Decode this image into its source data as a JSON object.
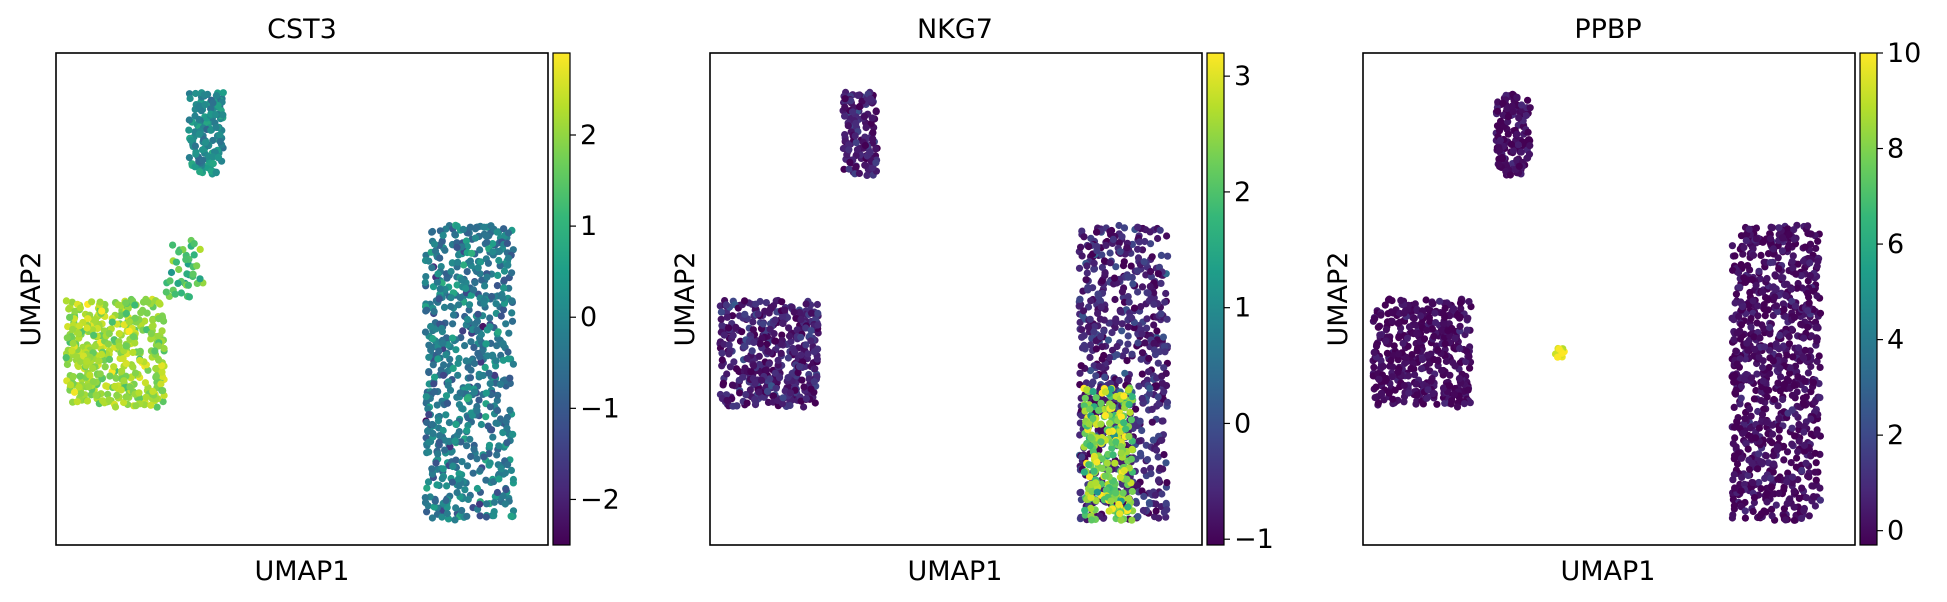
{
  "figure": {
    "panels": [
      {
        "title": "CST3",
        "xlabel": "UMAP1",
        "ylabel": "UMAP2"
      },
      {
        "title": "NKG7",
        "xlabel": "UMAP1",
        "ylabel": "UMAP2"
      },
      {
        "title": "PPBP",
        "xlabel": "UMAP1",
        "ylabel": "UMAP2"
      }
    ]
  },
  "colormap": {
    "name": "viridis",
    "stops": [
      "#440154",
      "#482878",
      "#3e4989",
      "#31688e",
      "#26828e",
      "#1f9e89",
      "#35b779",
      "#6ece58",
      "#b5de2b",
      "#fde725"
    ]
  },
  "chart_data": [
    {
      "type": "scatter",
      "title": "CST3",
      "xlabel": "UMAP1",
      "ylabel": "UMAP2",
      "x_ticks_shown": false,
      "y_ticks_shown": false,
      "colorbar": {
        "min": -2.5,
        "max": 2.9,
        "ticks": [
          -2,
          -1,
          0,
          1,
          2
        ],
        "tick_labels": [
          "−2",
          "−1",
          "0",
          "1",
          "2"
        ]
      },
      "clusters": [
        {
          "id": "top",
          "n": 150,
          "region": [
            [
              0.27,
              0.08
            ],
            [
              0.34,
              0.08
            ],
            [
              0.34,
              0.25
            ],
            [
              0.27,
              0.25
            ]
          ],
          "color_mean": 0.1,
          "color_sd": 0.45
        },
        {
          "id": "right",
          "n": 700,
          "region": [
            [
              0.75,
              0.35
            ],
            [
              0.93,
              0.35
            ],
            [
              0.93,
              0.95
            ],
            [
              0.75,
              0.95
            ]
          ],
          "color_mean": -0.3,
          "color_sd": 0.5
        },
        {
          "id": "left",
          "n": 450,
          "region": [
            [
              0.02,
              0.5
            ],
            [
              0.22,
              0.5
            ],
            [
              0.22,
              0.72
            ],
            [
              0.02,
              0.72
            ]
          ],
          "color_mean": 2.1,
          "color_sd": 0.35
        },
        {
          "id": "left-tail",
          "n": 40,
          "region": [
            [
              0.22,
              0.38
            ],
            [
              0.3,
              0.38
            ],
            [
              0.3,
              0.5
            ],
            [
              0.22,
              0.5
            ]
          ],
          "color_mean": 1.3,
          "color_sd": 0.4
        }
      ]
    },
    {
      "type": "scatter",
      "title": "NKG7",
      "xlabel": "UMAP1",
      "ylabel": "UMAP2",
      "x_ticks_shown": false,
      "y_ticks_shown": false,
      "colorbar": {
        "min": -1.05,
        "max": 3.2,
        "ticks": [
          -1,
          0,
          1,
          2,
          3
        ],
        "tick_labels": [
          "−1",
          "0",
          "1",
          "2",
          "3"
        ]
      },
      "clusters": [
        {
          "id": "top",
          "n": 150,
          "region": [
            [
              0.27,
              0.08
            ],
            [
              0.34,
              0.08
            ],
            [
              0.34,
              0.25
            ],
            [
              0.27,
              0.25
            ]
          ],
          "color_mean": -0.7,
          "color_sd": 0.3
        },
        {
          "id": "right",
          "n": 700,
          "region": [
            [
              0.75,
              0.35
            ],
            [
              0.93,
              0.35
            ],
            [
              0.93,
              0.95
            ],
            [
              0.75,
              0.95
            ]
          ],
          "color_mean": -0.6,
          "color_sd": 0.35
        },
        {
          "id": "right-lower",
          "n": 260,
          "region": [
            [
              0.76,
              0.68
            ],
            [
              0.86,
              0.68
            ],
            [
              0.86,
              0.95
            ],
            [
              0.76,
              0.95
            ]
          ],
          "color_mean": 2.4,
          "color_sd": 0.5
        },
        {
          "id": "left",
          "n": 450,
          "region": [
            [
              0.02,
              0.5
            ],
            [
              0.22,
              0.5
            ],
            [
              0.22,
              0.72
            ],
            [
              0.02,
              0.72
            ]
          ],
          "color_mean": -0.7,
          "color_sd": 0.3
        }
      ]
    },
    {
      "type": "scatter",
      "title": "PPBP",
      "xlabel": "UMAP1",
      "ylabel": "UMAP2",
      "x_ticks_shown": false,
      "y_ticks_shown": false,
      "colorbar": {
        "min": -0.3,
        "max": 10,
        "ticks": [
          0,
          2,
          4,
          6,
          8,
          10
        ],
        "tick_labels": [
          "0",
          "2",
          "4",
          "6",
          "8",
          "10"
        ]
      },
      "clusters": [
        {
          "id": "top",
          "n": 150,
          "region": [
            [
              0.27,
              0.08
            ],
            [
              0.34,
              0.08
            ],
            [
              0.34,
              0.25
            ],
            [
              0.27,
              0.25
            ]
          ],
          "color_mean": 0.0,
          "color_sd": 0.4
        },
        {
          "id": "right",
          "n": 900,
          "region": [
            [
              0.75,
              0.35
            ],
            [
              0.93,
              0.35
            ],
            [
              0.93,
              0.95
            ],
            [
              0.75,
              0.95
            ]
          ],
          "color_mean": 0.0,
          "color_sd": 0.5
        },
        {
          "id": "left",
          "n": 450,
          "region": [
            [
              0.02,
              0.5
            ],
            [
              0.22,
              0.5
            ],
            [
              0.22,
              0.72
            ],
            [
              0.02,
              0.72
            ]
          ],
          "color_mean": 0.0,
          "color_sd": 0.4
        },
        {
          "id": "platelets",
          "n": 12,
          "region": [
            [
              0.39,
              0.6
            ],
            [
              0.41,
              0.6
            ],
            [
              0.41,
              0.62
            ],
            [
              0.39,
              0.62
            ]
          ],
          "color_mean": 9.7,
          "color_sd": 0.3
        }
      ]
    }
  ]
}
